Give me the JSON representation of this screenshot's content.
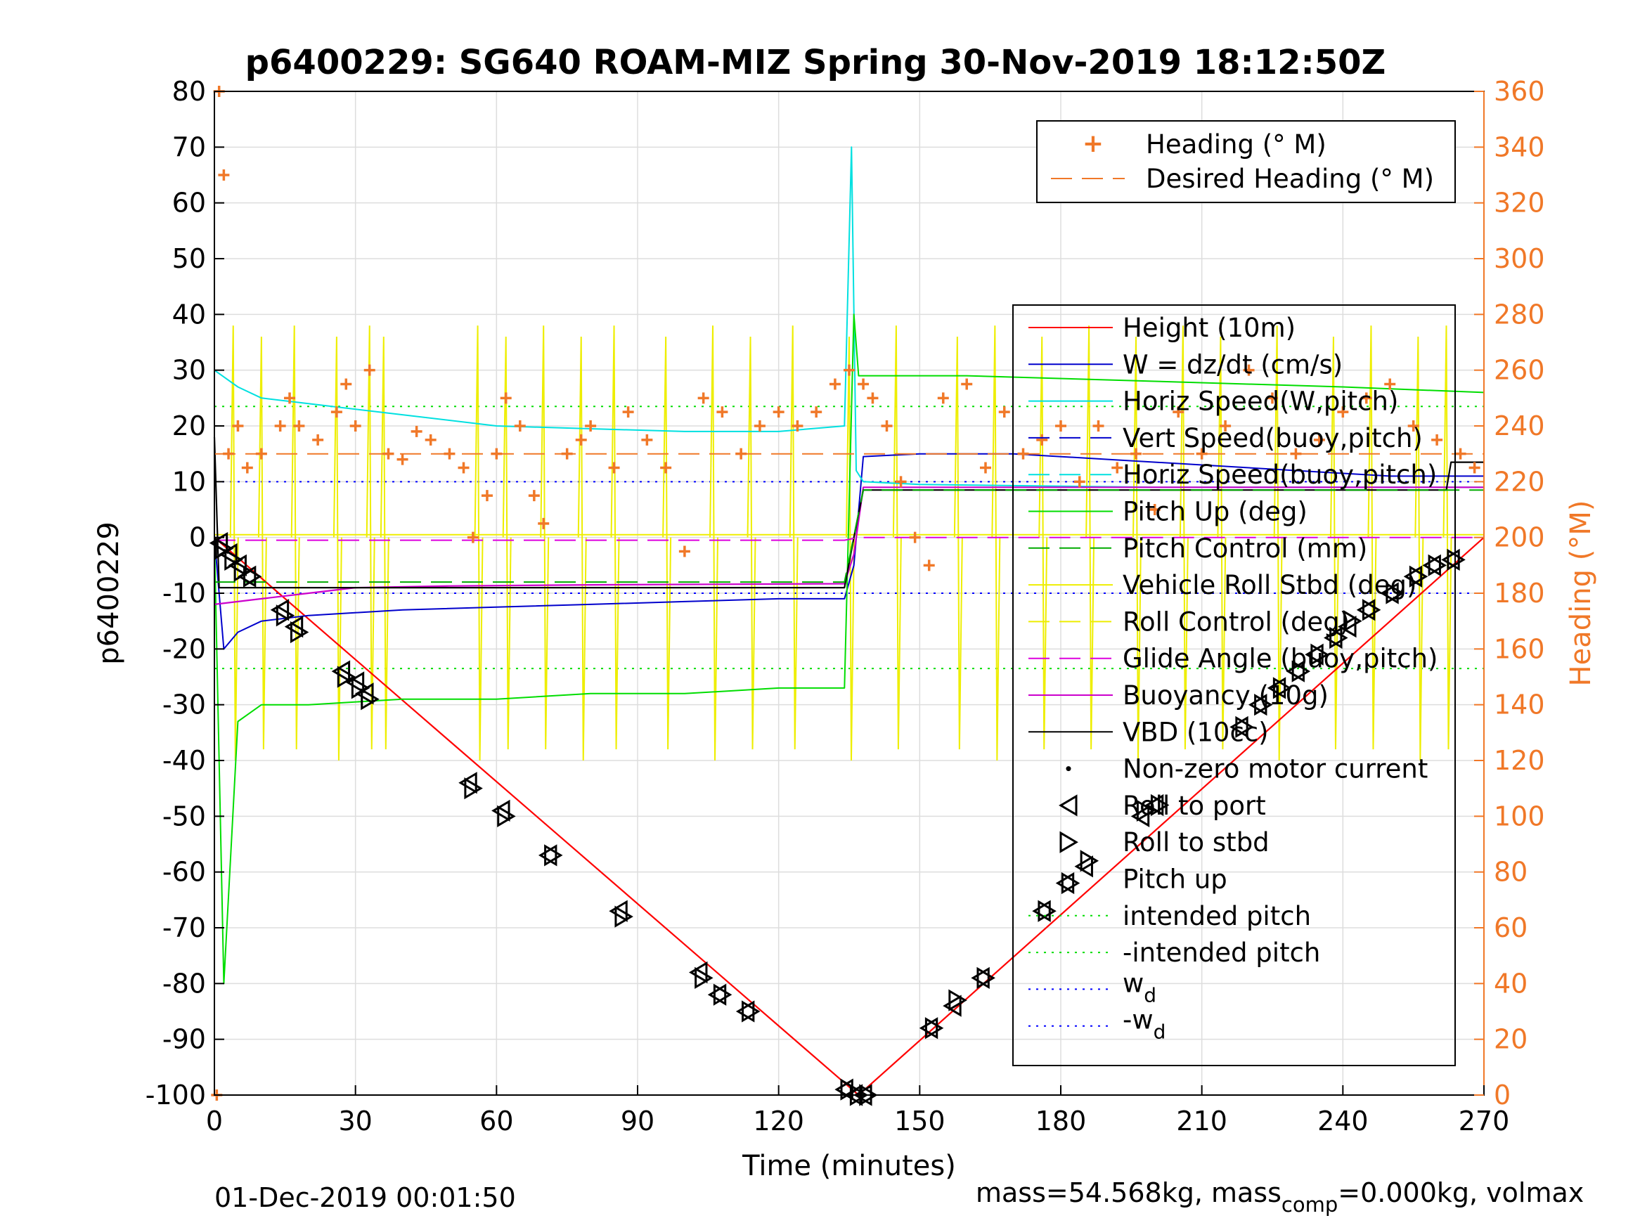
{
  "chart_data": {
    "type": "line",
    "title": "p6400229: SG640 ROAM-MIZ Spring 30-Nov-2019 18:12:50Z",
    "xlabel": "Time (minutes)",
    "ylabel": "p6400229",
    "ylabel_right": "Heading (°M)",
    "xlim": [
      0,
      270
    ],
    "ylim": [
      -100,
      80
    ],
    "ylim_right": [
      0,
      360
    ],
    "xticks": [
      0,
      30,
      60,
      90,
      120,
      150,
      180,
      210,
      240,
      270
    ],
    "yticks": [
      -100,
      -90,
      -80,
      -70,
      -60,
      -50,
      -40,
      -30,
      -20,
      -10,
      0,
      10,
      20,
      30,
      40,
      50,
      60,
      70,
      80
    ],
    "yticks_right": [
      0,
      20,
      40,
      60,
      80,
      100,
      120,
      140,
      160,
      180,
      200,
      220,
      240,
      260,
      280,
      300,
      320,
      340,
      360
    ],
    "grid": true,
    "legend_top": [
      "Heading (° M)",
      "Desired Heading (° M)"
    ],
    "legend_main": [
      "Height (10m)",
      "W = dz/dt (cm/s)",
      "Horiz Speed(W,pitch)",
      "Vert Speed(buoy,pitch)",
      "Horiz Speed(buoy,pitch)",
      "Pitch Up (deg)",
      "Pitch Control (mm)",
      "Vehicle Roll Stbd (deg)",
      "Roll Control (deg)",
      "Glide Angle (buoy,pitch)",
      "Buoyancy (10g)",
      "VBD (10cc)",
      "Non-zero motor current",
      "Roll to port",
      "Roll to stbd",
      "Pitch up",
      "intended pitch",
      "-intended pitch"
    ],
    "legend_wd": {
      "base": "w",
      "sub": "d",
      "neg_prefix": "-"
    },
    "colors": {
      "height": "#ff0000",
      "w": "#0000cc",
      "horiz_w": "#00e0e0",
      "vert_buoy": "#0000cc",
      "horiz_buoy": "#00e0e0",
      "pitch": "#00dd00",
      "pitch_ctrl": "#00aa00",
      "roll": "#eeee00",
      "roll_ctrl": "#eeee00",
      "glide": "#dd00dd",
      "buoyancy": "#cc00cc",
      "vbd": "#000000",
      "heading": "#f07828",
      "intended_pitch": "#00dd00",
      "wd": "#0000ff"
    },
    "series": [
      {
        "name": "Height (10m)",
        "x": [
          0,
          137,
          270
        ],
        "y": [
          0,
          -100,
          0
        ]
      },
      {
        "name": "W = dz/dt (cm/s)",
        "x": [
          0,
          2,
          5,
          10,
          20,
          40,
          60,
          80,
          100,
          120,
          134,
          136,
          138,
          150,
          170,
          190,
          210,
          230,
          250,
          262,
          270
        ],
        "y": [
          0,
          -20,
          -17,
          -15,
          -14,
          -13,
          -12.5,
          -12,
          -11.5,
          -11,
          -11,
          -5,
          14.5,
          15,
          15,
          14,
          13,
          12,
          11,
          11,
          11
        ]
      },
      {
        "name": "Horiz Speed(W,pitch)",
        "x": [
          0,
          5,
          10,
          20,
          40,
          60,
          80,
          100,
          120,
          134,
          135.5,
          136.5,
          138,
          150,
          200,
          270
        ],
        "y": [
          30,
          27,
          25,
          24,
          22,
          20,
          19.5,
          19,
          19,
          20,
          70,
          12,
          10,
          9.5,
          9,
          9
        ]
      },
      {
        "name": "Pitch Up (deg)",
        "x": [
          0,
          2,
          5,
          10,
          20,
          40,
          60,
          80,
          100,
          120,
          134,
          136,
          137,
          140,
          160,
          200,
          240,
          270
        ],
        "y": [
          0,
          -80,
          -33,
          -30,
          -30,
          -29,
          -29,
          -28,
          -28,
          -27,
          -27,
          40,
          29,
          29,
          29,
          28,
          27,
          26
        ]
      },
      {
        "name": "Buoyancy (10g)",
        "x": [
          0,
          5,
          10,
          20,
          30,
          50,
          80,
          134,
          136,
          138,
          160,
          200,
          240,
          270
        ],
        "y": [
          -12,
          -11.5,
          -11,
          -10,
          -9,
          -8.7,
          -8.5,
          -8.3,
          -3,
          9,
          9,
          9,
          9,
          9
        ]
      },
      {
        "name": "VBD (10cc)",
        "x": [
          0,
          1,
          2,
          60,
          134,
          136,
          138,
          200,
          262,
          263,
          270
        ],
        "y": [
          18,
          -9,
          -9,
          -9,
          -9,
          0,
          8.5,
          8.5,
          8.5,
          13.5,
          13.5
        ]
      },
      {
        "name": "Glide Angle (buoy,pitch)",
        "x": [
          0,
          134,
          137,
          270
        ],
        "y": [
          -0.5,
          -0.5,
          0,
          0
        ]
      },
      {
        "name": "Pitch Control (mm)",
        "x": [
          0,
          20,
          60,
          134,
          138,
          160,
          230,
          270
        ],
        "y": [
          -8,
          -8,
          -8,
          -8,
          8.5,
          8.5,
          8.5,
          8.5
        ]
      },
      {
        "name": "Heading (° M)",
        "x": [
          0.5,
          1,
          2,
          3,
          5,
          7,
          10,
          14,
          16,
          18,
          22,
          26,
          28,
          30,
          33,
          37,
          40,
          43,
          46,
          50,
          53,
          55,
          58,
          60,
          62,
          65,
          68,
          70,
          75,
          78,
          80,
          85,
          88,
          92,
          96,
          100,
          104,
          108,
          112,
          116,
          120,
          124,
          128,
          132,
          135,
          138,
          140,
          143,
          146,
          149,
          152,
          155,
          160,
          164,
          168,
          172,
          176,
          180,
          184,
          188,
          192,
          196,
          200,
          205,
          210,
          215,
          220,
          225,
          230,
          235,
          240,
          245,
          250,
          255,
          260,
          265,
          268
        ],
        "y": [
          0,
          360,
          330,
          230,
          240,
          225,
          230,
          240,
          250,
          240,
          235,
          245,
          255,
          240,
          260,
          230,
          228,
          238,
          235,
          230,
          225,
          200,
          215,
          230,
          250,
          240,
          215,
          205,
          230,
          235,
          240,
          225,
          245,
          235,
          225,
          195,
          250,
          245,
          230,
          240,
          245,
          240,
          245,
          255,
          260,
          255,
          250,
          240,
          220,
          200,
          190,
          250,
          255,
          225,
          245,
          230,
          235,
          240,
          220,
          240,
          225,
          230,
          210,
          245,
          230,
          240,
          260,
          250,
          230,
          235,
          245,
          250,
          255,
          240,
          235,
          230,
          225
        ]
      },
      {
        "name": "Desired Heading (° M)",
        "x": [
          0,
          137,
          137,
          270
        ],
        "y": [
          230,
          230,
          230,
          230
        ]
      }
    ],
    "markers": [
      {
        "name": "Roll to port",
        "x": [
          1,
          3,
          5,
          7,
          14,
          17,
          27,
          30,
          32,
          54,
          61,
          71,
          86,
          103,
          107,
          113,
          134,
          136,
          138,
          152,
          157,
          163,
          176,
          181,
          185,
          197,
          200,
          218,
          222,
          226,
          230,
          234,
          238,
          241,
          245,
          250,
          255,
          259,
          263
        ],
        "y": [
          -1,
          -3,
          -5,
          -7,
          -13,
          -16,
          -24,
          -26,
          -28,
          -44,
          -49,
          -57,
          -67,
          -78,
          -82,
          -85,
          -99,
          -100,
          -100,
          -88,
          -84,
          -79,
          -67,
          -62,
          -59,
          -50,
          -48,
          -34,
          -30,
          -27,
          -24,
          -21,
          -18,
          -16,
          -13,
          -10,
          -7,
          -5,
          -4
        ]
      },
      {
        "name": "Roll to stbd",
        "x": [
          2,
          4,
          6,
          8,
          15,
          18,
          28,
          31,
          33,
          55,
          62,
          72,
          87,
          104,
          108,
          114,
          135,
          137,
          139,
          153,
          158,
          164,
          177,
          182,
          186,
          198,
          201,
          219,
          223,
          227,
          231,
          235,
          239,
          242,
          246,
          251,
          256,
          260,
          264
        ],
        "y": [
          -2,
          -4,
          -6,
          -7,
          -14,
          -17,
          -25,
          -27,
          -29,
          -45,
          -50,
          -57,
          -68,
          -79,
          -82,
          -85,
          -99,
          -100,
          -100,
          -88,
          -83,
          -79,
          -67,
          -62,
          -58,
          -49,
          -48,
          -34,
          -30,
          -27,
          -24,
          -21,
          -18,
          -15,
          -13,
          -10,
          -7,
          -5,
          -4
        ]
      }
    ],
    "intended_pitch": 23.5,
    "wd": 10
  },
  "footer": {
    "date": "01-Dec-2019 00:01:50",
    "mass": "mass=54.568kg, mass",
    "mass_sub": "comp",
    "mass_rest": "=0.000kg, volmax"
  }
}
